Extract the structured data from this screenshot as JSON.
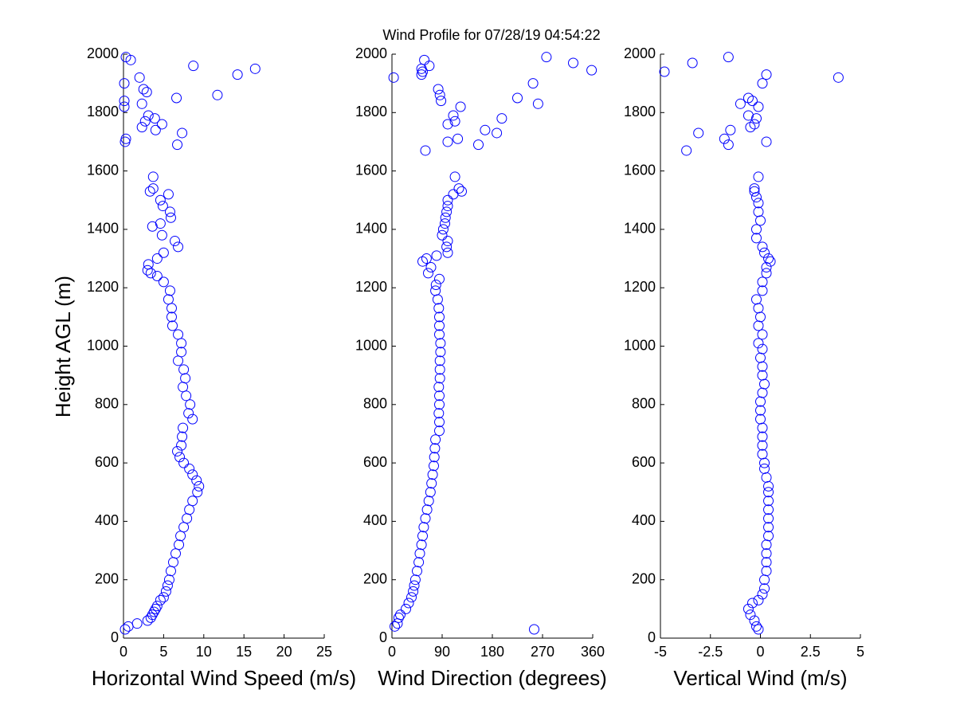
{
  "chart_data": [
    {
      "type": "scatter",
      "title": "Wind Profile for  07/28/19 04:54:22",
      "x_label": "Horizontal Wind Speed (m/s)",
      "y_label": "Height AGL (m)",
      "xlim": [
        0,
        25
      ],
      "xticks": [
        0,
        5,
        10,
        15,
        20,
        25
      ],
      "ylim": [
        0,
        2000
      ],
      "yticks": [
        0,
        200,
        400,
        600,
        800,
        1000,
        1200,
        1400,
        1600,
        1800,
        2000
      ],
      "series": [
        {
          "color": "#0000ff",
          "x": [
            0.2,
            0.6,
            1.7,
            3,
            3.4,
            3.6,
            3.8,
            4,
            4.2,
            4.6,
            5,
            5.3,
            5.5,
            5.7,
            5.9,
            6.2,
            6.5,
            6.9,
            7.1,
            7.5,
            7.9,
            8.2,
            8.6,
            9.2,
            9.4,
            9.1,
            8.6,
            8.2,
            7.5,
            7,
            6.7,
            7.2,
            7.3,
            7.4,
            8.6,
            8.1,
            8.3,
            7.8,
            7.4,
            7.7,
            7.5,
            6.8,
            7.2,
            7.2,
            6.8,
            6.1,
            6,
            6,
            5.6,
            5.8,
            5,
            4.2,
            3.4,
            3,
            3.1,
            4.2,
            5,
            6.8,
            6.4,
            4.8,
            3.6,
            4.6,
            5.9,
            5.8,
            4.9,
            4.6,
            5.6,
            3.3,
            3.7,
            3.7,
            6.7,
            0.2,
            0.3,
            7.3,
            4,
            2.3,
            4.8,
            2.7,
            3.9,
            3.1,
            0.1,
            2.3,
            0.1,
            6.6,
            11.7,
            2.9,
            2.5,
            0.1,
            2,
            14.2,
            16.4,
            8.7,
            0.9,
            0.3
          ],
          "y": [
            30,
            40,
            50,
            60,
            70,
            80,
            90,
            100,
            110,
            130,
            140,
            160,
            180,
            200,
            230,
            260,
            290,
            320,
            350,
            380,
            410,
            440,
            470,
            500,
            520,
            540,
            560,
            580,
            600,
            620,
            640,
            660,
            690,
            720,
            750,
            770,
            800,
            830,
            860,
            890,
            920,
            950,
            980,
            1010,
            1040,
            1070,
            1100,
            1130,
            1160,
            1190,
            1220,
            1240,
            1250,
            1260,
            1280,
            1300,
            1320,
            1340,
            1360,
            1380,
            1410,
            1420,
            1440,
            1460,
            1480,
            1500,
            1520,
            1530,
            1540,
            1580,
            1690,
            1700,
            1710,
            1730,
            1740,
            1750,
            1760,
            1770,
            1780,
            1790,
            1820,
            1830,
            1840,
            1850,
            1860,
            1870,
            1880,
            1900,
            1920,
            1930,
            1950,
            1960,
            1980,
            1990
          ]
        }
      ]
    },
    {
      "type": "scatter",
      "x_label": "Wind Direction (degrees)",
      "xlim": [
        0,
        360
      ],
      "xticks": [
        0,
        90,
        180,
        270,
        360
      ],
      "ylim": [
        0,
        2000
      ],
      "yticks": [
        0,
        200,
        400,
        600,
        800,
        1000,
        1200,
        1400,
        1600,
        1800,
        2000
      ],
      "series": [
        {
          "color": "#0000ff",
          "x": [
            255,
            5,
            10,
            12,
            15,
            25,
            30,
            35,
            38,
            40,
            42,
            45,
            48,
            50,
            53,
            55,
            57,
            60,
            63,
            66,
            69,
            71,
            73,
            75,
            76,
            77,
            78,
            85,
            85,
            84,
            85,
            85,
            84,
            86,
            86,
            86,
            87,
            87,
            85,
            85,
            85,
            84,
            82,
            78,
            79,
            85,
            65,
            70,
            55,
            62,
            80,
            100,
            98,
            100,
            90,
            92,
            95,
            96,
            98,
            100,
            100,
            110,
            125,
            120,
            113,
            60,
            155,
            100,
            118,
            188,
            167,
            100,
            113,
            197,
            110,
            123,
            262,
            88,
            225,
            86,
            83,
            253,
            3,
            53,
            55,
            53,
            67,
            325,
            58,
            277,
            358
          ],
          "y": [
            30,
            40,
            50,
            70,
            80,
            100,
            120,
            140,
            160,
            180,
            200,
            230,
            260,
            290,
            320,
            350,
            380,
            410,
            440,
            470,
            500,
            530,
            560,
            590,
            620,
            650,
            680,
            710,
            740,
            770,
            800,
            830,
            860,
            890,
            920,
            950,
            980,
            1010,
            1040,
            1070,
            1100,
            1130,
            1160,
            1190,
            1210,
            1230,
            1250,
            1270,
            1290,
            1300,
            1310,
            1320,
            1340,
            1360,
            1380,
            1400,
            1420,
            1440,
            1460,
            1480,
            1500,
            1520,
            1530,
            1540,
            1580,
            1670,
            1690,
            1700,
            1710,
            1730,
            1740,
            1760,
            1770,
            1780,
            1790,
            1820,
            1830,
            1840,
            1850,
            1860,
            1880,
            1900,
            1920,
            1930,
            1940,
            1950,
            1960,
            1970,
            1980,
            1990,
            1945
          ]
        }
      ]
    },
    {
      "type": "scatter",
      "x_label": "Vertical Wind (m/s)",
      "xlim": [
        -5,
        5
      ],
      "xticks": [
        -5,
        -2.5,
        0,
        2.5,
        5
      ],
      "ylim": [
        0,
        2000
      ],
      "yticks": [
        0,
        200,
        400,
        600,
        800,
        1000,
        1200,
        1400,
        1600,
        1800,
        2000
      ],
      "series": [
        {
          "color": "#0000ff",
          "x": [
            -0.1,
            -0.2,
            -0.3,
            -0.5,
            -0.6,
            -0.4,
            -0.1,
            0.1,
            0.2,
            0.2,
            0.3,
            0.3,
            0.3,
            0.3,
            0.4,
            0.4,
            0.4,
            0.4,
            0.4,
            0.4,
            0.4,
            0.3,
            0.2,
            0.2,
            0.1,
            0.1,
            0.1,
            0.1,
            0,
            0,
            0,
            0.1,
            0.2,
            0.1,
            0.1,
            0,
            0.1,
            -0.1,
            0.1,
            -0.1,
            0,
            -0.1,
            -0.2,
            0.1,
            0.1,
            0.3,
            0.3,
            0.5,
            0.4,
            0.2,
            0.1,
            -0.2,
            -0.2,
            0,
            -0.1,
            -0.1,
            -0.2,
            -0.3,
            -0.3,
            -0.1,
            -3.7,
            -1.6,
            0.3,
            -1.8,
            -3.1,
            -1.5,
            -0.5,
            -0.3,
            -0.2,
            -0.6,
            -0.1,
            -1,
            -0.4,
            -0.6,
            0.1,
            3.9,
            0.3,
            -4.8,
            -3.4,
            -1.6
          ],
          "y": [
            30,
            40,
            60,
            80,
            100,
            120,
            130,
            150,
            170,
            200,
            230,
            260,
            290,
            320,
            350,
            380,
            410,
            440,
            470,
            500,
            520,
            550,
            580,
            600,
            630,
            660,
            690,
            720,
            750,
            780,
            810,
            840,
            870,
            900,
            930,
            960,
            990,
            1010,
            1040,
            1070,
            1100,
            1130,
            1160,
            1190,
            1220,
            1250,
            1270,
            1290,
            1300,
            1320,
            1340,
            1370,
            1400,
            1430,
            1460,
            1490,
            1510,
            1530,
            1540,
            1580,
            1670,
            1690,
            1700,
            1710,
            1730,
            1740,
            1750,
            1760,
            1780,
            1790,
            1820,
            1830,
            1840,
            1850,
            1900,
            1920,
            1930,
            1940,
            1970,
            1990
          ]
        }
      ]
    }
  ]
}
